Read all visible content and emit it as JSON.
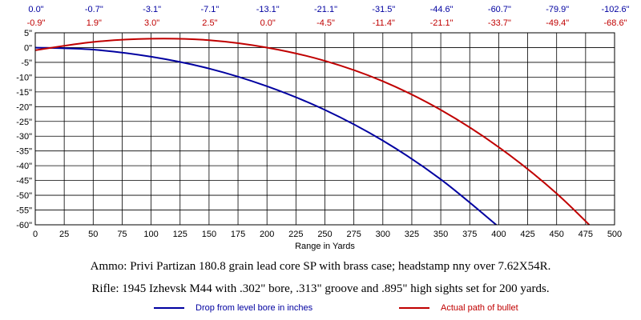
{
  "chart_data": {
    "type": "line",
    "x_range": [
      0,
      500
    ],
    "y_range": [
      -60,
      5
    ],
    "x_ticks": [
      0,
      25,
      50,
      75,
      100,
      125,
      150,
      175,
      200,
      225,
      250,
      275,
      300,
      325,
      350,
      375,
      400,
      425,
      450,
      475,
      500
    ],
    "y_ticks": [
      5,
      0,
      -5,
      -10,
      -15,
      -20,
      -25,
      -30,
      -35,
      -40,
      -45,
      -50,
      -55,
      -60
    ],
    "y_tick_suffix": "\"",
    "xlabel": "Range in Yards",
    "grid": true,
    "top_labels_x": [
      0,
      50,
      100,
      150,
      200,
      250,
      300,
      350,
      400,
      450,
      500
    ],
    "top_labels_drop": [
      "0.0\"",
      "-0.7\"",
      "-3.1\"",
      "-7.1\"",
      "-13.1\"",
      "-21.1\"",
      "-31.5\"",
      "-44.6\"",
      "-60.7\"",
      "-79.9\"",
      "-102.6\""
    ],
    "top_labels_path": [
      "-0.9\"",
      "1.9\"",
      "3.0\"",
      "2.5\"",
      "0.0\"",
      "-4.5\"",
      "-11.4\"",
      "-21.1\"",
      "-33.7\"",
      "-49.4\"",
      "-68.6\""
    ],
    "series": [
      {
        "name": "Drop from level bore in inches",
        "color": "#0000a0",
        "x": [
          0,
          50,
          100,
          150,
          200,
          250,
          300,
          350,
          400
        ],
        "y": [
          0.0,
          -0.7,
          -3.1,
          -7.1,
          -13.1,
          -21.1,
          -31.5,
          -44.6,
          -60.7
        ]
      },
      {
        "name": "Actual path of bullet",
        "color": "#c00000",
        "x": [
          0,
          50,
          100,
          150,
          200,
          250,
          300,
          350,
          400,
          450,
          500
        ],
        "y": [
          -0.9,
          1.9,
          3.0,
          2.5,
          0.0,
          -4.5,
          -11.4,
          -21.1,
          -33.7,
          -49.4,
          -68.6
        ]
      }
    ]
  },
  "notes": {
    "ammo": "Ammo:  Privi Partizan 180.8 grain lead core SP with brass case; headstamp nny over 7.62X54R.",
    "rifle": "Rifle:  1945 Izhevsk M44 with .302\" bore, .313\" groove and .895\" high sights set for 200 yards."
  },
  "legend": {
    "drop_label": "Drop from level bore in inches",
    "path_label": "Actual path of bullet"
  }
}
